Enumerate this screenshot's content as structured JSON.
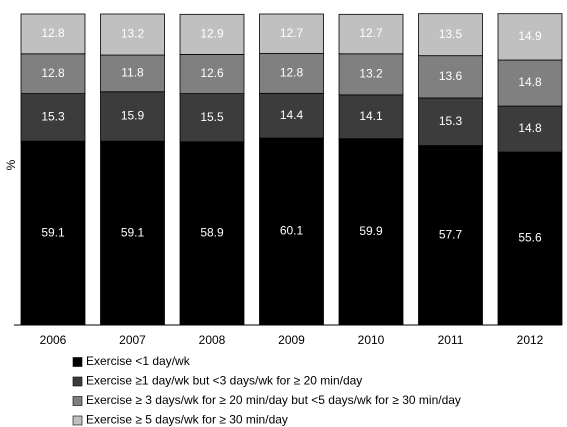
{
  "chart_data": {
    "type": "bar",
    "stacked": true,
    "title": "",
    "xlabel": "",
    "ylabel": "%",
    "ylim": [
      0,
      100
    ],
    "grid": false,
    "legend_position": "bottom",
    "categories": [
      "2006",
      "2007",
      "2008",
      "2009",
      "2010",
      "2011",
      "2012"
    ],
    "series": [
      {
        "name": "Exercise <1 day/wk",
        "color": "#000000",
        "label_color": "#ffffff",
        "values": [
          59.1,
          59.1,
          58.9,
          60.1,
          59.9,
          57.7,
          55.6
        ]
      },
      {
        "name": "Exercise ≥1 day/wk but <3 days/wk for ≥ 20 min/day",
        "color": "#3c3c3c",
        "label_color": "#ffffff",
        "values": [
          15.3,
          15.9,
          15.5,
          14.4,
          14.1,
          15.3,
          14.8
        ]
      },
      {
        "name": "Exercise ≥ 3 days/wk for ≥ 20 min/day but <5 days/wk for ≥ 30 min/day",
        "color": "#808080",
        "label_color": "#ffffff",
        "values": [
          12.8,
          11.8,
          12.6,
          12.8,
          13.2,
          13.6,
          14.8
        ]
      },
      {
        "name": "Exercise ≥ 5 days/wk for ≥ 30 min/day",
        "color": "#c0c0c0",
        "label_color": "#ffffff",
        "values": [
          12.8,
          13.2,
          12.9,
          12.7,
          12.7,
          13.5,
          14.9
        ]
      }
    ]
  }
}
